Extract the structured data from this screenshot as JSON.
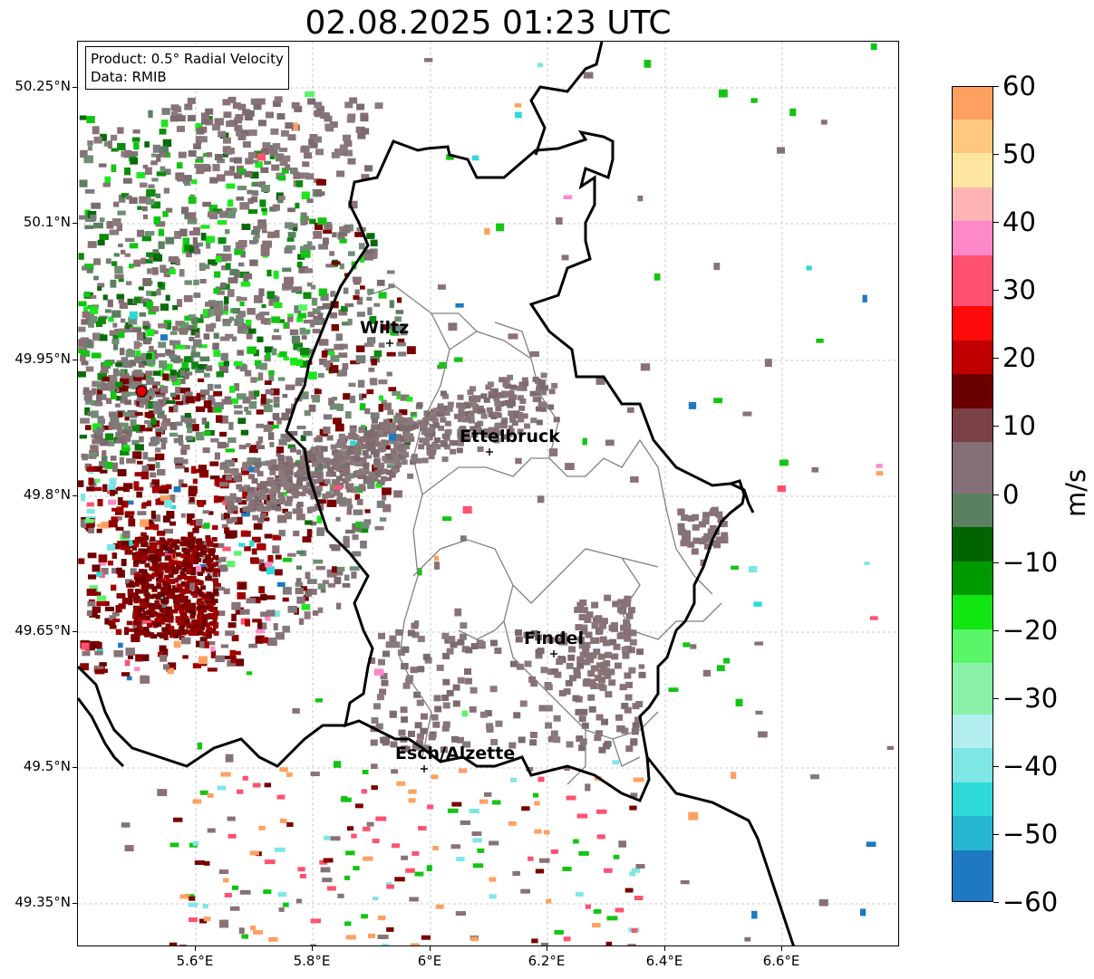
{
  "title": "02.08.2025 01:23 UTC",
  "product_box": {
    "line1": "Product: 0.5° Radial Velocity",
    "line2": "Data: RMIB"
  },
  "lat_labels": [
    "50.25°N",
    "50.1°N",
    "49.95°N",
    "49.8°N",
    "49.65°N",
    "49.5°N",
    "49.35°N"
  ],
  "lon_labels": [
    "5.6°E",
    "5.8°E",
    "6°E",
    "6.2°E",
    "6.4°E",
    "6.6°E"
  ],
  "cities": [
    {
      "name": "Wiltz"
    },
    {
      "name": "Ettelbruck"
    },
    {
      "name": "Findel"
    },
    {
      "name": "Esch/Alzette"
    }
  ],
  "colorbar": {
    "unit": "m/s",
    "ticks": [
      "60",
      "50",
      "40",
      "30",
      "20",
      "10",
      "0",
      "−10",
      "−20",
      "−30",
      "−40",
      "−50",
      "−60"
    ],
    "range": [
      -60,
      60
    ],
    "colors_bottom_to_top": [
      "#1f78c2",
      "#27b6d0",
      "#2ed9d9",
      "#7fe6e6",
      "#b4efef",
      "#8bf0a8",
      "#5af568",
      "#12e612",
      "#009a00",
      "#006400",
      "#5a8060",
      "#857079",
      "#7a4045",
      "#6b0000",
      "#c00000",
      "#ff0a0a",
      "#ff5070",
      "#ff88c8",
      "#ffb4b4",
      "#ffe6a0",
      "#ffc880",
      "#ffa060"
    ]
  },
  "colors": {
    "gray_velocity": "#877276",
    "dark_red": "#7a0000",
    "green": "#0c8a0c",
    "radar_marker": "#e00000"
  }
}
